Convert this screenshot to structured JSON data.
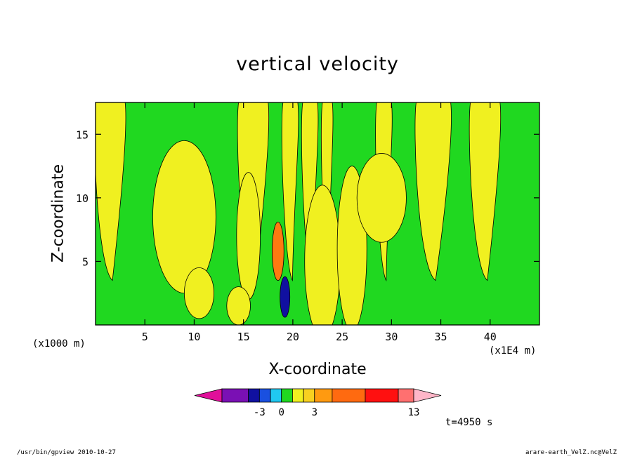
{
  "chart_data": {
    "type": "heatmap",
    "title": "vertical velocity",
    "xlabel": "X-coordinate",
    "ylabel": "Z-coordinate",
    "x_unit_left": "(x1000 m)",
    "x_unit_right": "(x1E4 m)",
    "x_ticks": [
      5,
      10,
      15,
      20,
      25,
      30,
      35,
      40
    ],
    "y_ticks": [
      5,
      10,
      15
    ],
    "xlim": [
      0,
      45
    ],
    "ylim": [
      0,
      17.5
    ],
    "colorbar": {
      "labels": [
        {
          "value": -3,
          "text": "-3"
        },
        {
          "value": 0,
          "text": "0"
        },
        {
          "value": 3,
          "text": "3"
        },
        {
          "value": 13,
          "text": "13"
        }
      ],
      "colors": [
        "#e0109a",
        "#7a10b4",
        "#1010a0",
        "#1a50e0",
        "#20c8f0",
        "#20d820",
        "#f0f020",
        "#f8d020",
        "#ff9a10",
        "#ff6a10",
        "#ff1010",
        "#ff7070",
        "#ffb6c8"
      ]
    },
    "bands": [
      {
        "x0": 0,
        "x1": 3,
        "level": "pos"
      },
      {
        "x0": 14.5,
        "x1": 17.5,
        "level": "pos"
      },
      {
        "x0": 19,
        "x1": 20.5,
        "level": "pos"
      },
      {
        "x0": 21,
        "x1": 22.5,
        "level": "pos"
      },
      {
        "x0": 23,
        "x1": 24,
        "level": "pos"
      },
      {
        "x0": 28.5,
        "x1": 30,
        "level": "pos"
      },
      {
        "x0": 32.5,
        "x1": 36,
        "level": "pos"
      },
      {
        "x0": 38,
        "x1": 41,
        "level": "pos"
      }
    ],
    "blobs": [
      {
        "cx": 9,
        "cy": 8.5,
        "rx": 3.2,
        "ry": 6,
        "level": "pos"
      },
      {
        "cx": 10.5,
        "cy": 2.5,
        "rx": 1.5,
        "ry": 2,
        "level": "pos"
      },
      {
        "cx": 15.5,
        "cy": 7,
        "rx": 1.2,
        "ry": 5,
        "level": "pos"
      },
      {
        "cx": 14.5,
        "cy": 1.5,
        "rx": 1.2,
        "ry": 1.5,
        "level": "pos"
      },
      {
        "cx": 23,
        "cy": 5,
        "rx": 1.8,
        "ry": 6,
        "level": "pos"
      },
      {
        "cx": 26,
        "cy": 6,
        "rx": 1.5,
        "ry": 6.5,
        "level": "pos"
      },
      {
        "cx": 29,
        "cy": 10,
        "rx": 2.5,
        "ry": 3.5,
        "level": "pos"
      },
      {
        "cx": 18.5,
        "cy": 5.8,
        "rx": 0.6,
        "ry": 2.3,
        "level": "strong"
      },
      {
        "cx": 19.2,
        "cy": 2.2,
        "rx": 0.5,
        "ry": 1.6,
        "level": "neg"
      }
    ],
    "time": "t=4950 s"
  },
  "footer": {
    "left": "/usr/bin/gpview  2010-10-27",
    "right": "arare-earth_VelZ.nc@VelZ"
  }
}
